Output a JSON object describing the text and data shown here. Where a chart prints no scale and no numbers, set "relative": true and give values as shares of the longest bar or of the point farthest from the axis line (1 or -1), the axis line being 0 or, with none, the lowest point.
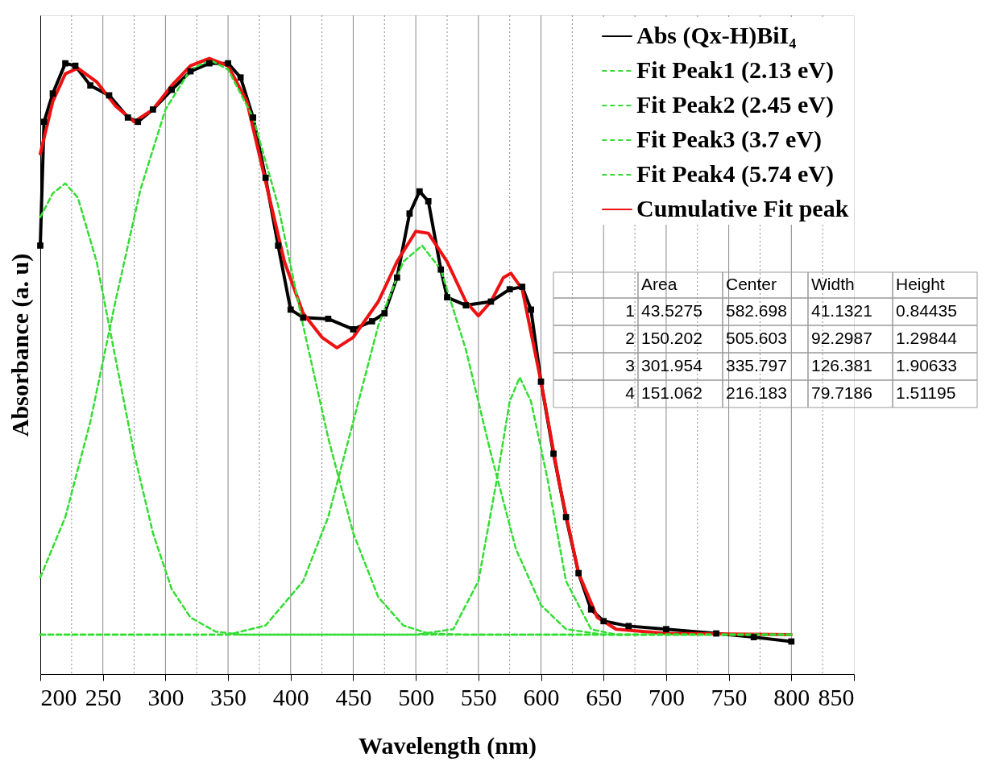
{
  "chart_data": {
    "type": "line",
    "relative": true,
    "xlabel": "Wavelength (nm)",
    "ylabel": "Absorbance (a. u)",
    "xlim": [
      200,
      850
    ],
    "xticks": [
      200,
      {
        "value": 225,
        "label": null
      },
      250,
      {
        "value": 275,
        "label": null
      },
      300,
      {
        "value": 325,
        "label": null
      },
      350,
      {
        "value": 375,
        "label": null
      },
      400,
      {
        "value": 425,
        "label": null
      },
      450,
      {
        "value": 475,
        "label": null
      },
      500,
      {
        "value": 525,
        "label": null
      },
      550,
      {
        "value": 575,
        "label": null
      },
      600,
      {
        "value": 625,
        "label": null
      },
      650,
      {
        "value": 675,
        "label": null
      },
      700,
      {
        "value": 725,
        "label": null
      },
      750,
      {
        "value": 775,
        "label": null
      },
      800,
      {
        "value": 825,
        "label": null
      },
      850
    ],
    "grid": "x",
    "legend": "top right",
    "series": [
      {
        "name": "Abs (Qx-H)BiI₄",
        "color": "#000000",
        "marker": "square",
        "line_style": "solid",
        "x": [
          200,
          203,
          210,
          220,
          228,
          240,
          255,
          270,
          278,
          290,
          305,
          320,
          335,
          350,
          360,
          370,
          380,
          390,
          400,
          410,
          430,
          450,
          465,
          475,
          485,
          495,
          503,
          510,
          520,
          525,
          540,
          560,
          575,
          585,
          592,
          600,
          610,
          620,
          630,
          640,
          650,
          670,
          700,
          740,
          770,
          800
        ],
        "values": [
          0.696,
          0.897,
          0.943,
          0.992,
          0.988,
          0.956,
          0.94,
          0.904,
          0.897,
          0.917,
          0.949,
          0.979,
          0.992,
          0.992,
          0.969,
          0.904,
          0.806,
          0.696,
          0.592,
          0.579,
          0.577,
          0.56,
          0.573,
          0.586,
          0.644,
          0.748,
          0.784,
          0.768,
          0.657,
          0.612,
          0.599,
          0.605,
          0.625,
          0.629,
          0.592,
          0.475,
          0.358,
          0.255,
          0.164,
          0.105,
          0.086,
          0.078,
          0.073,
          0.066,
          0.06,
          0.053
        ]
      },
      {
        "name": "Fit Peak1 (2.13 eV)",
        "color": "#33dd33",
        "marker": "none",
        "line_style": "dashed",
        "x": [
          200,
          500,
          530,
          550,
          565,
          575,
          583,
          592,
          605,
          620,
          640,
          660,
          800
        ],
        "values": [
          0.064,
          0.064,
          0.073,
          0.151,
          0.319,
          0.443,
          0.482,
          0.443,
          0.319,
          0.151,
          0.073,
          0.064,
          0.064
        ]
      },
      {
        "name": "Fit Peak2 (2.45 eV)",
        "color": "#33dd33",
        "marker": "none",
        "line_style": "dashed",
        "x": [
          200,
          350,
          380,
          410,
          430,
          450,
          470,
          490,
          505,
          520,
          540,
          560,
          580,
          600,
          620,
          650,
          800
        ],
        "values": [
          0.064,
          0.064,
          0.079,
          0.151,
          0.255,
          0.41,
          0.566,
          0.67,
          0.696,
          0.657,
          0.527,
          0.358,
          0.203,
          0.112,
          0.073,
          0.064,
          0.064
        ]
      },
      {
        "name": "Fit Peak3 (3.7 eV)",
        "color": "#33dd33",
        "marker": "none",
        "line_style": "dashed",
        "x": [
          200,
          220,
          240,
          260,
          280,
          300,
          320,
          336,
          350,
          370,
          390,
          410,
          430,
          450,
          470,
          490,
          510,
          540,
          800
        ],
        "values": [
          0.157,
          0.255,
          0.41,
          0.605,
          0.787,
          0.917,
          0.982,
          0.997,
          0.982,
          0.904,
          0.761,
          0.566,
          0.384,
          0.229,
          0.125,
          0.079,
          0.066,
          0.064,
          0.064
        ]
      },
      {
        "name": "Fit Peak4 (5.74 eV)",
        "color": "#33dd33",
        "marker": "none",
        "line_style": "dashed",
        "x": [
          200,
          210,
          220,
          230,
          245,
          260,
          275,
          290,
          305,
          320,
          340,
          360,
          800
        ],
        "values": [
          0.742,
          0.781,
          0.797,
          0.774,
          0.67,
          0.514,
          0.358,
          0.229,
          0.138,
          0.092,
          0.069,
          0.064,
          0.064
        ]
      },
      {
        "name": "Cumulative Fit peak",
        "color": "#ee1111",
        "marker": "none",
        "line_style": "solid",
        "x": [
          200,
          210,
          220,
          230,
          245,
          260,
          275,
          290,
          305,
          320,
          335,
          350,
          365,
          380,
          395,
          410,
          425,
          437,
          450,
          470,
          485,
          500,
          510,
          525,
          540,
          550,
          560,
          570,
          576,
          585,
          600,
          615,
          630,
          645,
          660,
          700,
          800
        ],
        "values": [
          0.845,
          0.93,
          0.975,
          0.984,
          0.962,
          0.923,
          0.897,
          0.917,
          0.956,
          0.988,
          1.0,
          0.988,
          0.93,
          0.8,
          0.67,
          0.586,
          0.547,
          0.53,
          0.547,
          0.605,
          0.67,
          0.719,
          0.716,
          0.67,
          0.605,
          0.582,
          0.605,
          0.644,
          0.651,
          0.625,
          0.475,
          0.306,
          0.164,
          0.092,
          0.073,
          0.066,
          0.064
        ]
      }
    ],
    "annotations": [
      "Area",
      "Center",
      "Width",
      "Height",
      "1",
      "43.5275",
      "582.698",
      "41.1321",
      "0.84435",
      "2",
      "150.202",
      "505.603",
      "92.2987",
      "1.29844",
      "3",
      "301.954",
      "335.797",
      "126.381",
      "1.90633",
      "4",
      "151.062",
      "216.183",
      "79.7186",
      "1.51195"
    ]
  }
}
